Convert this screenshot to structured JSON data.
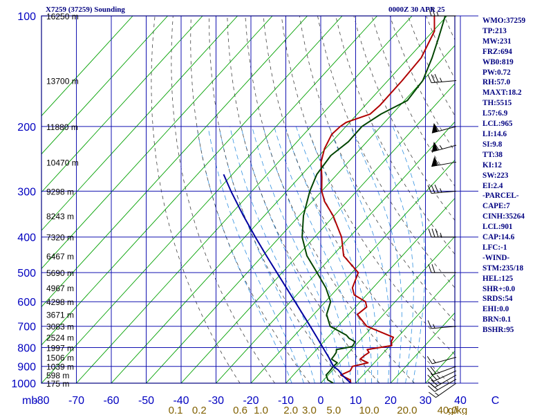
{
  "header": {
    "station": "X7259 (37259) Sounding",
    "time": "0000Z 30 APR 25"
  },
  "indices": [
    "WMO:37259",
    "TP:213",
    "MW:231",
    "FRZ:694",
    "WB0:819",
    "PW:0.72",
    "RH:57.0",
    "MAXT:18.2",
    "TH:5515",
    "L57:6.9",
    "LCL:965",
    "LI:14.6",
    "SI:9.8",
    "TT:38",
    "KI:12",
    "SW:223",
    "EI:2.4",
    "-PARCEL-",
    "CAPE:7",
    "CINH:35264",
    "LCL:901",
    "CAP:14.6",
    "LFC:-1",
    "-WIND-",
    "STM:235/18",
    "HEL:125",
    "SHR+:0.0",
    "SRDS:54",
    "EHI:0.0",
    "BRN:0.1",
    "BSHR:95"
  ],
  "chart_data": {
    "type": "line",
    "title": "X7259 (37259) Sounding",
    "subtitle": "0000Z 30 APR 25",
    "x_axis": {
      "units_label": "mb",
      "range": [
        -80,
        40
      ],
      "ticks": [
        "-80",
        "-70",
        "-60",
        "-50",
        "-40",
        "-30",
        "-20",
        "-10",
        "0",
        "10",
        "20",
        "30",
        "40",
        "C"
      ]
    },
    "y_axis": {
      "scale": "log",
      "range": [
        1000,
        100
      ],
      "ticks": [
        1000,
        900,
        800,
        700,
        600,
        500,
        400,
        300,
        200,
        100
      ]
    },
    "height_labels": [
      {
        "p": 100,
        "label": "16250 m"
      },
      {
        "p": 150,
        "label": "13700 m"
      },
      {
        "p": 200,
        "label": "11880 m"
      },
      {
        "p": 250,
        "label": "10470 m"
      },
      {
        "p": 300,
        "label": "9298 m"
      },
      {
        "p": 350,
        "label": "8243 m"
      },
      {
        "p": 400,
        "label": "7320 m"
      },
      {
        "p": 450,
        "label": "6467 m"
      },
      {
        "p": 500,
        "label": "5690 m"
      },
      {
        "p": 550,
        "label": "4967 m"
      },
      {
        "p": 600,
        "label": "4298 m"
      },
      {
        "p": 650,
        "label": "3671 m"
      },
      {
        "p": 700,
        "label": "3083 m"
      },
      {
        "p": 750,
        "label": "2524 m"
      },
      {
        "p": 800,
        "label": "1997 m"
      },
      {
        "p": 850,
        "label": "1506 m"
      },
      {
        "p": 900,
        "label": "1039 m"
      },
      {
        "p": 950,
        "label": "598 m"
      },
      {
        "p": 1000,
        "label": "175 m"
      }
    ],
    "mixing_ratio_labels": [
      "0.1",
      "0.2",
      "0.6",
      "1.0",
      "2.0",
      "3.0",
      "5.0",
      "10.0",
      "20.0",
      "40.0",
      "g/kg"
    ],
    "mixing_ratio_values": [
      0.1,
      0.2,
      0.6,
      1.0,
      2.0,
      3.0,
      5.0,
      10.0,
      20.0,
      40.0
    ],
    "isotherm_start": -150,
    "dry_adiabat_thetas": [
      250,
      260,
      270,
      280,
      290,
      300,
      310,
      320,
      330,
      340,
      350,
      360,
      370,
      380,
      390,
      400,
      410,
      420,
      430
    ],
    "moist_adiabat_thetaes": [
      270,
      275,
      280,
      285,
      290,
      295,
      300,
      305,
      310,
      315,
      320,
      330,
      340,
      350,
      360
    ],
    "series": [
      {
        "key": "temperature",
        "color": "#b00000",
        "points": [
          [
            1000,
            8.6
          ],
          [
            980,
            7.6
          ],
          [
            950,
            3.6
          ],
          [
            925,
            5.2
          ],
          [
            900,
            4.7
          ],
          [
            880,
            8.2
          ],
          [
            860,
            5.0
          ],
          [
            840,
            5.3
          ],
          [
            825,
            5.8
          ],
          [
            810,
            4.5
          ],
          [
            790,
            10.5
          ],
          [
            770,
            9.3
          ],
          [
            750,
            8.8
          ],
          [
            730,
            4.7
          ],
          [
            700,
            -1.7
          ],
          [
            650,
            -7.5
          ],
          [
            620,
            -6.8
          ],
          [
            600,
            -8.5
          ],
          [
            575,
            -13.5
          ],
          [
            550,
            -15.9
          ],
          [
            500,
            -18.2
          ],
          [
            450,
            -26.8
          ],
          [
            400,
            -32.3
          ],
          [
            350,
            -40.3
          ],
          [
            320,
            -46.5
          ],
          [
            300,
            -50.0
          ],
          [
            275,
            -53.6
          ],
          [
            250,
            -57.8
          ],
          [
            230,
            -60.3
          ],
          [
            210,
            -62.0
          ],
          [
            200,
            -61.6
          ],
          [
            195,
            -61.0
          ],
          [
            185,
            -56.3
          ],
          [
            175,
            -55.8
          ],
          [
            150,
            -55.9
          ],
          [
            130,
            -56.4
          ],
          [
            110,
            -59.6
          ],
          [
            100,
            -63.6
          ]
        ]
      },
      {
        "key": "dewpoint",
        "color": "#004400",
        "points": [
          [
            1000,
            3.6
          ],
          [
            980,
            1.2
          ],
          [
            950,
            -0.6
          ],
          [
            925,
            -0.6
          ],
          [
            900,
            -0.8
          ],
          [
            880,
            -0.6
          ],
          [
            860,
            -3.2
          ],
          [
            840,
            -3.4
          ],
          [
            825,
            -3.6
          ],
          [
            810,
            -4.3
          ],
          [
            795,
            -0.6
          ],
          [
            780,
            -0.8
          ],
          [
            770,
            -1.2
          ],
          [
            755,
            -3.6
          ],
          [
            740,
            -5.2
          ],
          [
            700,
            -12.2
          ],
          [
            650,
            -16.3
          ],
          [
            600,
            -18.5
          ],
          [
            550,
            -23.5
          ],
          [
            500,
            -30.0
          ],
          [
            450,
            -37.3
          ],
          [
            400,
            -43.6
          ],
          [
            350,
            -48.8
          ],
          [
            300,
            -53.4
          ],
          [
            270,
            -55.8
          ],
          [
            240,
            -56.7
          ],
          [
            220,
            -55.3
          ],
          [
            200,
            -55.4
          ],
          [
            185,
            -53.2
          ],
          [
            170,
            -49.2
          ],
          [
            150,
            -50.0
          ],
          [
            130,
            -53.3
          ],
          [
            115,
            -56.6
          ],
          [
            100,
            -60.5
          ]
        ]
      },
      {
        "key": "parcel",
        "color": "#0000a0",
        "points": [
          [
            1000,
            8.6
          ],
          [
            950,
            4.0
          ],
          [
            920,
            1.5
          ],
          [
            901,
            -0.7
          ],
          [
            850,
            -4.5
          ],
          [
            800,
            -8.7
          ],
          [
            750,
            -13.1
          ],
          [
            700,
            -17.9
          ],
          [
            600,
            -28.7
          ],
          [
            500,
            -41.5
          ],
          [
            450,
            -48.9
          ],
          [
            400,
            -57.0
          ],
          [
            350,
            -66.0
          ],
          [
            300,
            -76.0
          ],
          [
            270,
            -82.5
          ]
        ]
      }
    ],
    "wind_barbs": [
      {
        "p": 1000,
        "dir": 235,
        "spd": 15
      },
      {
        "p": 975,
        "dir": 240,
        "spd": 20
      },
      {
        "p": 950,
        "dir": 240,
        "spd": 25
      },
      {
        "p": 925,
        "dir": 245,
        "spd": 25
      },
      {
        "p": 900,
        "dir": 250,
        "spd": 20
      },
      {
        "p": 850,
        "dir": 255,
        "spd": 15
      },
      {
        "p": 700,
        "dir": 265,
        "spd": 15
      },
      {
        "p": 500,
        "dir": 270,
        "spd": 20
      },
      {
        "p": 400,
        "dir": 270,
        "spd": 35
      },
      {
        "p": 300,
        "dir": 265,
        "spd": 35
      },
      {
        "p": 250,
        "dir": 260,
        "spd": 60
      },
      {
        "p": 225,
        "dir": 255,
        "spd": 65
      },
      {
        "p": 200,
        "dir": 255,
        "spd": 60
      },
      {
        "p": 150,
        "dir": 265,
        "spd": 35
      },
      {
        "p": 100,
        "dir": 270,
        "spd": 25
      }
    ],
    "colors": {
      "frame": "#000080",
      "grid": "#1010b0",
      "isotherm": "#00a000",
      "dry_adiabat": "#404040",
      "moist_adiabat": "#3090e0",
      "tick_text": "#0000c0",
      "mixing_text": "#806000",
      "barb": "#000000"
    }
  }
}
